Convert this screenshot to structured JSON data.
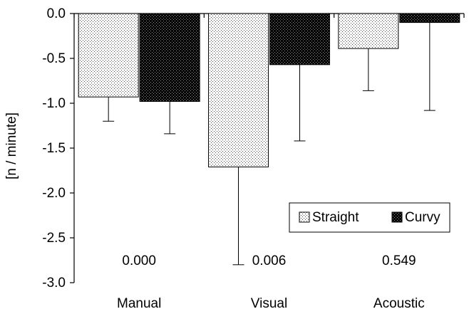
{
  "chart_data": {
    "type": "bar",
    "categories": [
      "Manual",
      "Visual",
      "Acoustic"
    ],
    "series": [
      {
        "name": "Straight",
        "values": [
          -0.93,
          -1.71,
          -0.39
        ],
        "errors": [
          0.27,
          1.09,
          0.47
        ],
        "fill": "#ffffff",
        "pattern": "light-dots"
      },
      {
        "name": "Curvy",
        "values": [
          -0.98,
          -0.57,
          -0.1
        ],
        "errors": [
          0.36,
          0.85,
          0.98
        ],
        "fill": "#000000",
        "pattern": "dark-dots"
      }
    ],
    "annotations": [
      "0.000",
      "0.006",
      "0.549"
    ],
    "ylabel": "[n / minute]",
    "xlabel": "",
    "title": "",
    "ylim": [
      -3.0,
      0.0
    ],
    "yticks": [
      0.0,
      -0.5,
      -1.0,
      -1.5,
      -2.0,
      -2.5,
      -3.0
    ],
    "ytick_labels": [
      "0.0",
      "-0.5",
      "-1.0",
      "-1.5",
      "-2.0",
      "-2.5",
      "-3.0"
    ],
    "grid": false,
    "legend_position": "bottom-right",
    "legend": [
      "Straight",
      "Curvy"
    ]
  }
}
